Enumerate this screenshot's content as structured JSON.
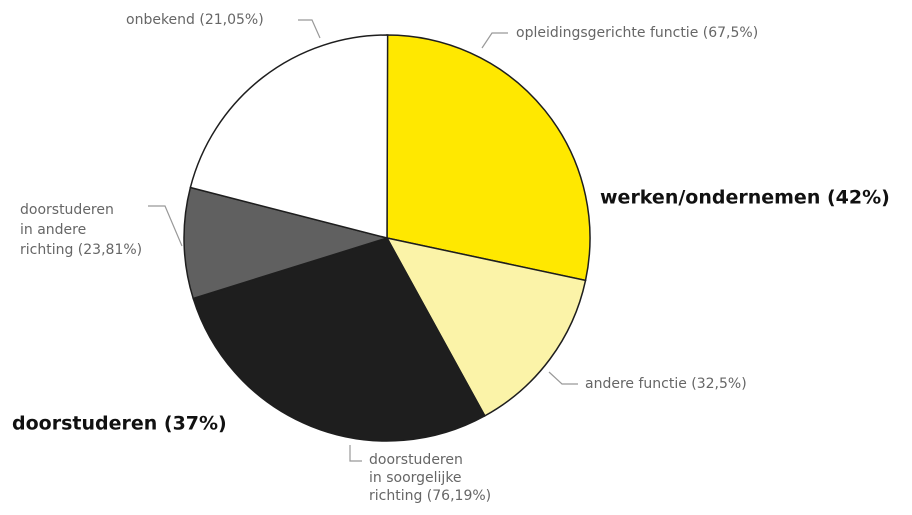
{
  "chart_data": {
    "type": "pie",
    "groups": [
      {
        "label": "werken/ondernemen (42%)",
        "value": 42,
        "slices": [
          {
            "label": [
              "opleidingsgerichte functie (67,5%)"
            ],
            "value": 67.5,
            "color": "#ffe800"
          },
          {
            "label": [
              "andere functie (32,5%)"
            ],
            "value": 32.5,
            "color": "#fbf3a8"
          }
        ]
      },
      {
        "label": "doorstuderen (37%)",
        "value": 37,
        "slices": [
          {
            "label": [
              "doorstuderen",
              "in soorgelijke",
              "richting (76,19%)"
            ],
            "value": 76.19,
            "color": "#1e1e1e"
          },
          {
            "label": [
              "doorstuderen",
              "in andere",
              "richting (23,81%)"
            ],
            "value": 23.81,
            "color": "#606060"
          }
        ]
      },
      {
        "slices": [
          {
            "label": [
              "onbekend (21,05%)"
            ],
            "value": 21.05,
            "color": "#ffffff"
          }
        ]
      }
    ]
  }
}
